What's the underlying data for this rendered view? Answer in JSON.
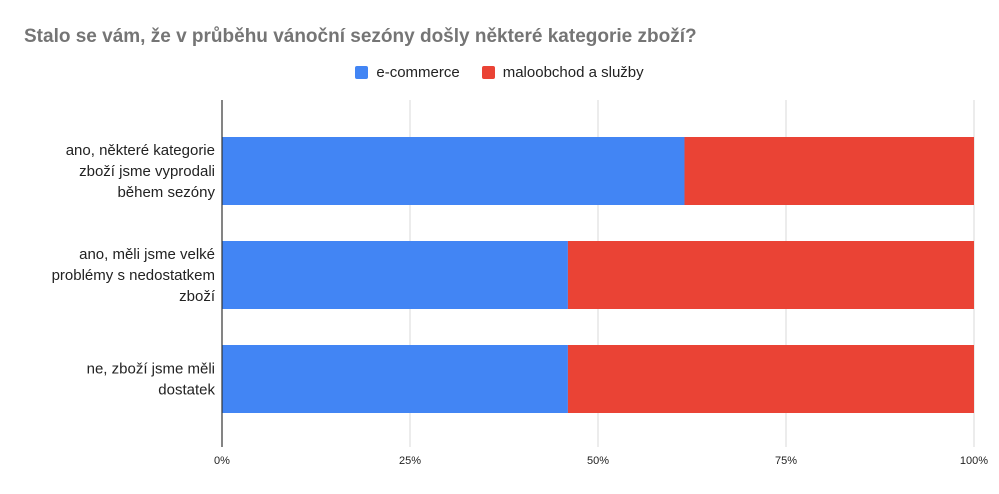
{
  "chart_data": {
    "type": "bar",
    "orientation": "horizontal",
    "stacked": "percent",
    "title": "Stalo se vám, že v průběhu vánoční sezóny došly některé kategorie zboží?",
    "categories": [
      [
        "ano, některé kategorie",
        "zboží jsme vyprodali",
        "během sezóny"
      ],
      [
        "ano, měli jsme velké",
        "problémy s nedostatkem",
        "zboží"
      ],
      [
        "ne, zboží jsme měli",
        "dostatek"
      ]
    ],
    "series": [
      {
        "name": "e-commerce",
        "color": "#4285F4",
        "values": [
          61.5,
          46,
          46
        ]
      },
      {
        "name": "maloobchod a služby",
        "color": "#EA4335",
        "values": [
          38.5,
          54,
          54
        ]
      }
    ],
    "xlim": [
      0,
      100
    ],
    "xticks": [
      "0%",
      "25%",
      "50%",
      "75%",
      "100%"
    ],
    "xlabel": "",
    "ylabel": "",
    "grid": true,
    "legend_position": "top"
  }
}
